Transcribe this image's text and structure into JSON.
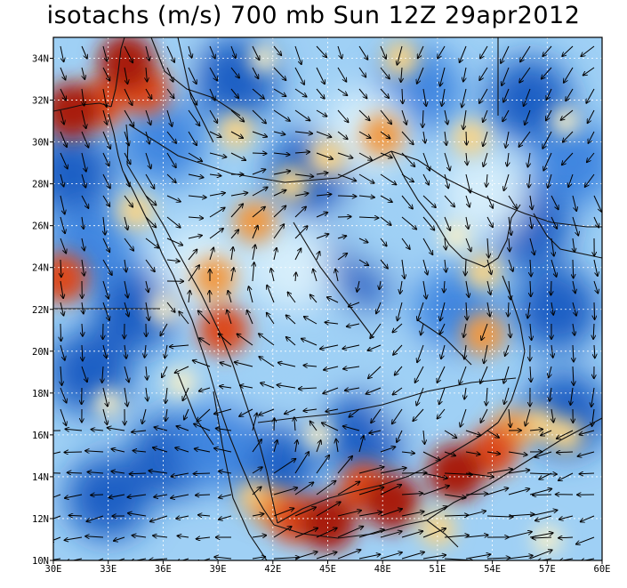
{
  "title": "isotachs (m/s) 700 mb Sun 12Z 29apr2012",
  "lat_labels": [
    "10N",
    "12N",
    "14N",
    "16N",
    "18N",
    "20N",
    "22N",
    "24N",
    "26N",
    "28N",
    "30N",
    "32N",
    "34N"
  ],
  "lon_labels": [
    "30E",
    "33E",
    "36E",
    "39E",
    "42E",
    "45E",
    "48E",
    "51E",
    "54E",
    "57E",
    "60E"
  ],
  "extent": {
    "lon": [
      30,
      60
    ],
    "lat": [
      10,
      35
    ]
  },
  "colors": {
    "dark_blue": "#1f5fc4",
    "blue": "#3f86e0",
    "light_blue": "#9fd0f5",
    "pale_blue": "#d6eefb",
    "cream": "#fbf1c6",
    "yellow": "#f8d488",
    "orange": "#f09a45",
    "red_orange": "#dc4a1b",
    "dark_red": "#a81d09"
  },
  "background_field": [
    {
      "lon": 31,
      "lat": 28.5,
      "lvl": 0
    },
    {
      "lon": 34.5,
      "lat": 22,
      "lvl": 0
    },
    {
      "lon": 36.5,
      "lat": 15,
      "lvl": 0
    },
    {
      "lon": 33,
      "lat": 13,
      "lvl": 0
    },
    {
      "lon": 32,
      "lat": 19,
      "lvl": 0
    },
    {
      "lon": 46,
      "lat": 23.5,
      "lvl": 0
    },
    {
      "lon": 44,
      "lat": 28.5,
      "lvl": 0
    },
    {
      "lon": 56,
      "lat": 26,
      "lvl": 0
    },
    {
      "lon": 57.5,
      "lat": 22,
      "lvl": 0
    },
    {
      "lon": 58,
      "lat": 17,
      "lvl": 0
    },
    {
      "lon": 56,
      "lat": 32,
      "lvl": 0
    },
    {
      "lon": 40,
      "lat": 33,
      "lvl": 0
    },
    {
      "lon": 47,
      "lat": 16,
      "lvl": 0
    },
    {
      "lon": 42,
      "lat": 14.5,
      "lvl": 0
    },
    {
      "lon": 36,
      "lat": 30,
      "lvl": 1
    },
    {
      "lon": 50,
      "lat": 32.5,
      "lvl": 1
    },
    {
      "lon": 52,
      "lat": 22,
      "lvl": 1
    },
    {
      "lon": 32,
      "lat": 25,
      "lvl": 1
    },
    {
      "lon": 39,
      "lat": 15.5,
      "lvl": 1
    },
    {
      "lon": 58.5,
      "lat": 29,
      "lvl": 1
    },
    {
      "lon": 44.5,
      "lat": 21,
      "lvl": 2
    },
    {
      "lon": 48,
      "lat": 26,
      "lvl": 2
    },
    {
      "lon": 41.5,
      "lat": 19,
      "lvl": 2
    },
    {
      "lon": 50,
      "lat": 18,
      "lvl": 2
    },
    {
      "lon": 35,
      "lat": 34,
      "lvl": 2
    },
    {
      "lon": 47,
      "lat": 30.5,
      "lvl": 3
    },
    {
      "lon": 43,
      "lat": 24,
      "lvl": 3
    },
    {
      "lon": 53.5,
      "lat": 27.5,
      "lvl": 3
    },
    {
      "lon": 38,
      "lat": 24,
      "lvl": 3
    }
  ],
  "jet_cores": [
    {
      "lon": 45,
      "lat": 11.8,
      "lvl": 8
    },
    {
      "lon": 48.5,
      "lat": 12.8,
      "lvl": 8
    },
    {
      "lon": 52,
      "lat": 14.2,
      "lvl": 8
    },
    {
      "lon": 43.2,
      "lat": 12,
      "lvl": 7
    },
    {
      "lon": 54,
      "lat": 15.2,
      "lvl": 7
    },
    {
      "lon": 55,
      "lat": 16.2,
      "lvl": 6
    },
    {
      "lon": 42,
      "lat": 12.5,
      "lvl": 6
    },
    {
      "lon": 47,
      "lat": 13.5,
      "lvl": 7
    },
    {
      "lon": 56.5,
      "lat": 16.5,
      "lvl": 5
    },
    {
      "lon": 41,
      "lat": 13,
      "lvl": 5
    },
    {
      "lon": 58,
      "lat": 16,
      "lvl": 5
    },
    {
      "lon": 51,
      "lat": 11.5,
      "lvl": 5
    },
    {
      "lon": 34,
      "lat": 33.8,
      "lvl": 8
    },
    {
      "lon": 35,
      "lat": 32.5,
      "lvl": 7
    },
    {
      "lon": 31,
      "lat": 31.5,
      "lvl": 8
    },
    {
      "lon": 32.5,
      "lat": 31.8,
      "lvl": 7
    },
    {
      "lon": 30.5,
      "lat": 23.5,
      "lvl": 7
    },
    {
      "lon": 39.3,
      "lat": 21,
      "lvl": 7
    },
    {
      "lon": 38.8,
      "lat": 23.5,
      "lvl": 6
    },
    {
      "lon": 41,
      "lat": 26.2,
      "lvl": 6
    },
    {
      "lon": 43,
      "lat": 28,
      "lvl": 5
    },
    {
      "lon": 45,
      "lat": 29.3,
      "lvl": 5
    },
    {
      "lon": 48,
      "lat": 30.3,
      "lvl": 6
    },
    {
      "lon": 53.5,
      "lat": 20.8,
      "lvl": 6
    },
    {
      "lon": 53.5,
      "lat": 23.8,
      "lvl": 5
    },
    {
      "lon": 40,
      "lat": 30.5,
      "lvl": 5
    },
    {
      "lon": 34.5,
      "lat": 26.7,
      "lvl": 5
    },
    {
      "lon": 52.8,
      "lat": 30.2,
      "lvl": 5
    },
    {
      "lon": 49,
      "lat": 34,
      "lvl": 5
    },
    {
      "lon": 37,
      "lat": 18.5,
      "lvl": 4
    },
    {
      "lon": 52,
      "lat": 25.5,
      "lvl": 4
    },
    {
      "lon": 44.5,
      "lat": 16,
      "lvl": 4
    },
    {
      "lon": 57,
      "lat": 11,
      "lvl": 4
    },
    {
      "lon": 41.5,
      "lat": 34,
      "lvl": 4
    },
    {
      "lon": 58,
      "lat": 31,
      "lvl": 4
    },
    {
      "lon": 33,
      "lat": 17.5,
      "lvl": 4
    },
    {
      "lon": 36,
      "lat": 22,
      "lvl": 4
    }
  ],
  "circulation": {
    "center_lon": 46,
    "center_lat": 23.5
  }
}
